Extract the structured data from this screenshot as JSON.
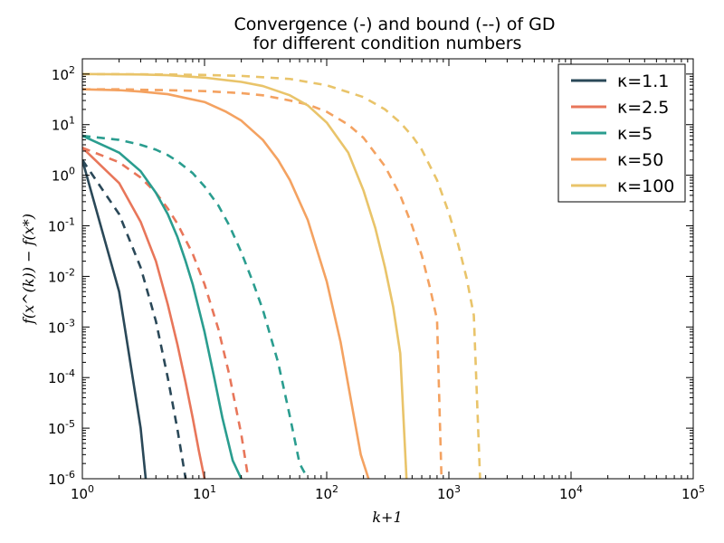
{
  "chart_data": {
    "type": "line",
    "title": "Convergence (-) and bound (--) of GD",
    "subtitle": "for different condition numbers",
    "xlabel": "k+1",
    "ylabel": "f(x^(k)) − f(x*)",
    "xscale": "log",
    "yscale": "log",
    "xlim": [
      1,
      100000
    ],
    "ylim": [
      1e-06,
      200
    ],
    "x_ticks": [
      {
        "value": 1,
        "label": "10^0"
      },
      {
        "value": 10,
        "label": "10^1"
      },
      {
        "value": 100,
        "label": "10^2"
      },
      {
        "value": 1000,
        "label": "10^3"
      },
      {
        "value": 10000,
        "label": "10^4"
      },
      {
        "value": 100000,
        "label": "10^5"
      }
    ],
    "y_ticks": [
      {
        "value": 100,
        "label": "10^2"
      },
      {
        "value": 10,
        "label": "10^1"
      },
      {
        "value": 1,
        "label": "10^0"
      },
      {
        "value": 0.1,
        "label": "10^-1"
      },
      {
        "value": 0.01,
        "label": "10^-2"
      },
      {
        "value": 0.001,
        "label": "10^-3"
      },
      {
        "value": 0.0001,
        "label": "10^-4"
      },
      {
        "value": 1e-05,
        "label": "10^-5"
      },
      {
        "value": 1e-06,
        "label": "10^-6"
      }
    ],
    "grid": false,
    "legend_position": "top-right",
    "series": [
      {
        "name": "κ=1.1",
        "kind": "convergence",
        "style": "solid",
        "color": "#2a4858",
        "x": [
          1,
          2,
          3,
          3.3
        ],
        "y": [
          2,
          0.005,
          1e-05,
          1e-06
        ]
      },
      {
        "name": "κ=1.1",
        "kind": "bound",
        "style": "dashed",
        "color": "#2a4858",
        "x": [
          1,
          2,
          3,
          4,
          5,
          6,
          7
        ],
        "y": [
          2,
          0.17,
          0.015,
          0.0013,
          0.0001,
          9.5e-06,
          1e-06
        ]
      },
      {
        "name": "κ=2.5",
        "kind": "convergence",
        "style": "solid",
        "color": "#e8765a",
        "x": [
          1,
          2,
          3,
          4,
          5,
          6,
          7,
          8,
          9,
          10
        ],
        "y": [
          3.5,
          0.7,
          0.12,
          0.02,
          0.0028,
          0.00045,
          8e-05,
          1.6e-05,
          3.5e-06,
          1e-06
        ]
      },
      {
        "name": "κ=2.5",
        "kind": "bound",
        "style": "dashed",
        "color": "#e8765a",
        "x": [
          1,
          2,
          3,
          4,
          5,
          6,
          8,
          10,
          13,
          16,
          20,
          25,
          30
        ],
        "y": [
          3.5,
          1.8,
          0.9,
          0.45,
          0.22,
          0.11,
          0.028,
          0.007,
          0.0009,
          0.00011,
          7.5e-06,
          2.5e-07,
          1e-06
        ]
      },
      {
        "name": "κ=5",
        "kind": "convergence",
        "style": "solid",
        "color": "#2a9d8f",
        "x": [
          1,
          2,
          3,
          4,
          5,
          6,
          7,
          8,
          10,
          12,
          14,
          17,
          20
        ],
        "y": [
          6,
          2.8,
          1.2,
          0.45,
          0.17,
          0.06,
          0.02,
          0.007,
          0.0008,
          0.0001,
          1.6e-05,
          2.3e-06,
          1e-06
        ]
      },
      {
        "name": "κ=5",
        "kind": "bound",
        "style": "dashed",
        "color": "#2a9d8f",
        "x": [
          1,
          2,
          3,
          4,
          5,
          6,
          8,
          10,
          13,
          16,
          20,
          25,
          30,
          40,
          50,
          60,
          70
        ],
        "y": [
          6,
          5,
          4,
          3.2,
          2.5,
          1.9,
          1.1,
          0.6,
          0.25,
          0.1,
          0.03,
          0.0075,
          0.0022,
          0.0002,
          1.7e-05,
          2e-06,
          1e-06
        ]
      },
      {
        "name": "κ=50",
        "kind": "convergence",
        "style": "solid",
        "color": "#f4a261",
        "x": [
          1,
          2,
          3,
          5,
          10,
          15,
          20,
          30,
          40,
          50,
          70,
          100,
          130,
          160,
          190,
          220
        ],
        "y": [
          50,
          48,
          45,
          40,
          28,
          18,
          12,
          5,
          2,
          0.8,
          0.13,
          0.008,
          0.0005,
          3e-05,
          3e-06,
          1e-06
        ]
      },
      {
        "name": "κ=50",
        "kind": "bound",
        "style": "dashed",
        "color": "#f4a261",
        "x": [
          1,
          2,
          3,
          5,
          10,
          20,
          30,
          50,
          70,
          100,
          150,
          200,
          300,
          400,
          500,
          600,
          700,
          800,
          870
        ],
        "y": [
          50,
          50,
          49,
          48,
          46,
          42,
          38,
          30,
          25,
          18,
          10,
          5.5,
          1.5,
          0.4,
          0.1,
          0.026,
          0.006,
          0.0014,
          1e-06
        ]
      },
      {
        "name": "κ=100",
        "kind": "convergence",
        "style": "solid",
        "color": "#e9c46a",
        "x": [
          1,
          3,
          5,
          10,
          20,
          30,
          50,
          70,
          100,
          150,
          200,
          250,
          300,
          350,
          400,
          450
        ],
        "y": [
          100,
          98,
          95,
          85,
          70,
          58,
          38,
          24,
          11,
          2.8,
          0.5,
          0.09,
          0.015,
          0.0025,
          0.0003,
          1e-06
        ]
      },
      {
        "name": "κ=100",
        "kind": "bound",
        "style": "dashed",
        "color": "#e9c46a",
        "x": [
          1,
          3,
          5,
          10,
          20,
          50,
          100,
          200,
          300,
          400,
          500,
          600,
          800,
          1000,
          1200,
          1400,
          1600,
          1800
        ],
        "y": [
          100,
          99,
          98,
          96,
          92,
          80,
          60,
          35,
          20,
          11,
          6,
          3.2,
          0.8,
          0.18,
          0.04,
          0.009,
          0.0017,
          1e-06
        ]
      }
    ],
    "legend": [
      {
        "label": "κ=1.1",
        "color": "#2a4858"
      },
      {
        "label": "κ=2.5",
        "color": "#e8765a"
      },
      {
        "label": "κ=5",
        "color": "#2a9d8f"
      },
      {
        "label": "κ=50",
        "color": "#f4a261"
      },
      {
        "label": "κ=100",
        "color": "#e9c46a"
      }
    ]
  }
}
